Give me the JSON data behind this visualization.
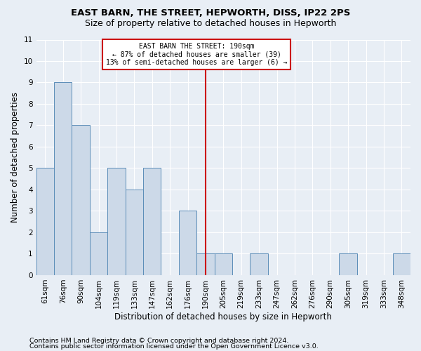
{
  "title": "EAST BARN, THE STREET, HEPWORTH, DISS, IP22 2PS",
  "subtitle": "Size of property relative to detached houses in Hepworth",
  "xlabel": "Distribution of detached houses by size in Hepworth",
  "ylabel": "Number of detached properties",
  "categories": [
    "61sqm",
    "76sqm",
    "90sqm",
    "104sqm",
    "119sqm",
    "133sqm",
    "147sqm",
    "162sqm",
    "176sqm",
    "190sqm",
    "205sqm",
    "219sqm",
    "233sqm",
    "247sqm",
    "262sqm",
    "276sqm",
    "290sqm",
    "305sqm",
    "319sqm",
    "333sqm",
    "348sqm"
  ],
  "values": [
    5,
    9,
    7,
    2,
    5,
    4,
    5,
    0,
    3,
    1,
    1,
    0,
    1,
    0,
    0,
    0,
    0,
    1,
    0,
    0,
    1
  ],
  "bar_color": "#ccd9e8",
  "bar_edge_color": "#5b8db8",
  "marker_index": 9,
  "marker_line_color": "#cc0000",
  "annotation_line1": "EAST BARN THE STREET: 190sqm",
  "annotation_line2": "← 87% of detached houses are smaller (39)",
  "annotation_line3": "13% of semi-detached houses are larger (6) →",
  "annotation_box_color": "#cc0000",
  "ylim": [
    0,
    11
  ],
  "yticks": [
    0,
    1,
    2,
    3,
    4,
    5,
    6,
    7,
    8,
    9,
    10,
    11
  ],
  "footer1": "Contains HM Land Registry data © Crown copyright and database right 2024.",
  "footer2": "Contains public sector information licensed under the Open Government Licence v3.0.",
  "background_color": "#e8eef5",
  "title_fontsize": 9.5,
  "subtitle_fontsize": 9.0,
  "axis_label_fontsize": 8.5,
  "tick_fontsize": 7.5,
  "footer_fontsize": 6.8
}
